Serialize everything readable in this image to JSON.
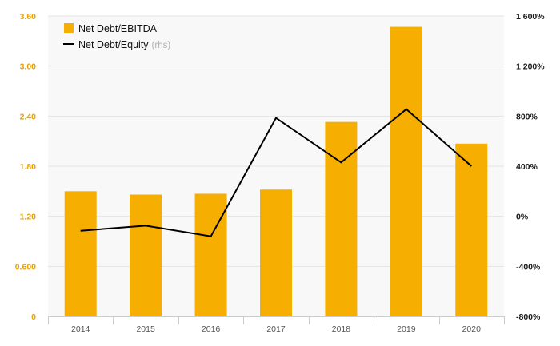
{
  "colors": {
    "bar": "#f6ae00",
    "line": "#000000",
    "left_tick": "#e8a200",
    "right_tick": "#1a1a1a",
    "x_tick": "#555555",
    "grid": "#e4e4e4",
    "axis": "#cccccc",
    "legend_suffix": "#b0b0b0",
    "background": "#f8f8f8"
  },
  "legend": {
    "bar_label": "Net Debt/EBITDA",
    "line_label": "Net Debt/Equity",
    "line_suffix": "(rhs)"
  },
  "chart_data": {
    "type": "bar",
    "categories": [
      "2014",
      "2015",
      "2016",
      "2017",
      "2018",
      "2019",
      "2020"
    ],
    "series": [
      {
        "name": "Net Debt/EBITDA",
        "type": "bar",
        "axis": "left",
        "values": [
          1.5,
          1.46,
          1.47,
          1.52,
          2.33,
          3.47,
          2.07
        ]
      },
      {
        "name": "Net Debt/Equity (rhs)",
        "type": "line",
        "axis": "right",
        "values": [
          -115,
          -75,
          -160,
          785,
          430,
          855,
          400
        ]
      }
    ],
    "y_left": {
      "range": [
        0,
        3.6
      ],
      "ticks": [
        0,
        0.6,
        1.2,
        1.8,
        2.4,
        3.0,
        3.6
      ],
      "tick_labels": [
        "0",
        "0.600",
        "1.20",
        "1.80",
        "2.40",
        "3.00",
        "3.60"
      ]
    },
    "y_right": {
      "range": [
        -800,
        1600
      ],
      "ticks": [
        -800,
        -400,
        0,
        400,
        800,
        1200,
        1600
      ],
      "tick_labels": [
        "-800%",
        "-400%",
        "0%",
        "400%",
        "800%",
        "1 200%",
        "1 600%"
      ]
    },
    "grid": true,
    "legend_position": "top-left"
  }
}
